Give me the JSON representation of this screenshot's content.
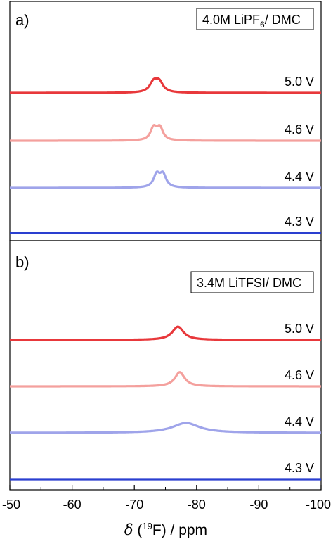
{
  "chart_data": [
    {
      "type": "line",
      "panel_label": "a)",
      "legend_box": {
        "text": "4.0M LiPF",
        "sub": "6",
        "text2": "/ DMC"
      },
      "series": [
        {
          "name": "5.0 V",
          "color": "#e8383b",
          "peaks": [
            {
              "center": -73.1,
              "width": 0.75,
              "height": 1.0
            },
            {
              "center": -74.0,
              "width": 0.75,
              "height": 1.0
            }
          ]
        },
        {
          "name": "4.6 V",
          "color": "#f4a09d",
          "peaks": [
            {
              "center": -73.1,
              "width": 0.6,
              "height": 1.25
            },
            {
              "center": -74.1,
              "width": 0.6,
              "height": 1.25
            }
          ]
        },
        {
          "name": "4.4 V",
          "color": "#9fa4ea",
          "peaks": [
            {
              "center": -73.6,
              "width": 0.6,
              "height": 1.3
            },
            {
              "center": -74.6,
              "width": 0.6,
              "height": 1.3
            }
          ]
        },
        {
          "name": "4.3 V",
          "color": "#2a3fd0",
          "peaks": []
        }
      ]
    },
    {
      "type": "line",
      "panel_label": "b)",
      "legend_box": {
        "text": "3.4M LiTFSI/ DMC",
        "sub": "",
        "text2": ""
      },
      "series": [
        {
          "name": "5.0 V",
          "color": "#e8383b",
          "peaks": [
            {
              "center": -77.0,
              "width": 1.1,
              "height": 1.35
            }
          ]
        },
        {
          "name": "4.6 V",
          "color": "#f4a09d",
          "peaks": [
            {
              "center": -77.3,
              "width": 0.95,
              "height": 1.45
            }
          ]
        },
        {
          "name": "4.4 V",
          "color": "#9fa4ea",
          "peaks": [
            {
              "center": -78.3,
              "width": 2.6,
              "height": 1.0
            }
          ]
        },
        {
          "name": "4.3 V",
          "color": "#2a3fd0",
          "peaks": []
        }
      ]
    }
  ],
  "x_axis": {
    "xlim": [
      -50,
      -100
    ],
    "ticks": [
      -50,
      -60,
      -70,
      -80,
      -90,
      -100
    ],
    "tick_labels": [
      "-50",
      "-60",
      "-70",
      "-80",
      "-90",
      "-100"
    ],
    "label": {
      "delta": "δ",
      "open": " (",
      "sup": "19",
      "rest": "F) / ppm"
    }
  }
}
